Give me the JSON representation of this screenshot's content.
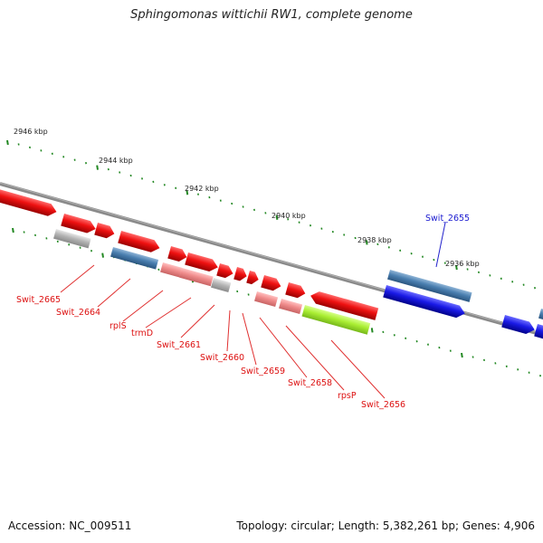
{
  "title": "Sphingomonas wittichii RW1, complete genome",
  "footer": {
    "accession": "Accession: NC_009511",
    "topology": "Topology: circular; Length: 5,382,261 bp; Genes: 4,906"
  },
  "scale": [
    "2946 kbp",
    "2944 kbp",
    "2942 kbp",
    "2940 kbp",
    "2938 kbp",
    "2936 kbp"
  ],
  "genes_red": [
    "Swit_2665",
    "Swit_2664",
    "rplS",
    "trmD",
    "Swit_2661",
    "Swit_2660",
    "Swit_2659",
    "Swit_2658",
    "rpsP",
    "Swit_2656"
  ],
  "gene_blue": "Swit_2655",
  "colors": {
    "forward": "#ee1111",
    "reverse": "#1a1ae6",
    "steel": "#4a7fb0",
    "pink": "#f08c8c",
    "gray": "#b4b4b4",
    "lime": "#aaee33",
    "backbone": "#808080",
    "tick": "#228822"
  }
}
